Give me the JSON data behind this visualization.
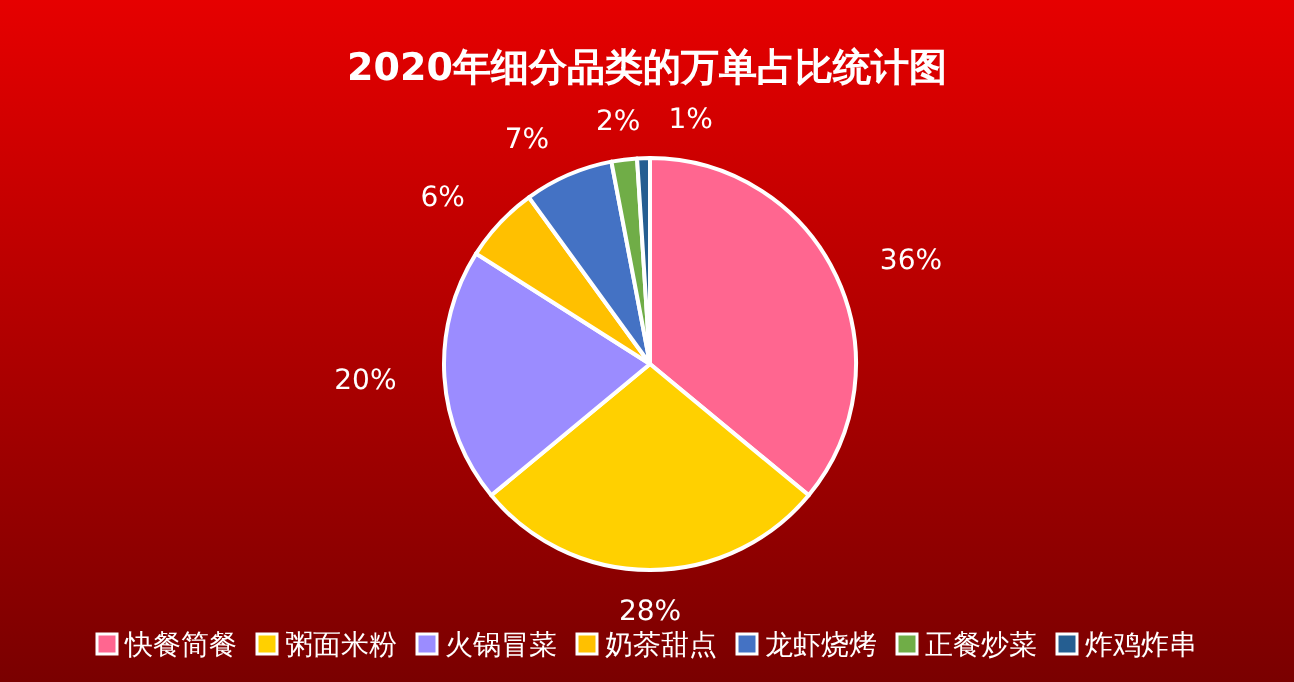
{
  "chart_data": {
    "type": "pie",
    "title": "2020年细分品类的万单占比统计图",
    "categories": [
      "快餐简餐",
      "粥面米粉",
      "火锅冒菜",
      "奶茶甜点",
      "龙虾烧烤",
      "正餐炒菜",
      "炸鸡炸串"
    ],
    "values": [
      36,
      28,
      20,
      6,
      7,
      2,
      1
    ],
    "value_labels": [
      "36%",
      "28%",
      "20%",
      "6%",
      "7%",
      "2%",
      "1%"
    ],
    "colors": [
      "#ff6690",
      "#ffd000",
      "#9b8cff",
      "#ffc000",
      "#4472c4",
      "#70ad47",
      "#255e91"
    ],
    "legend": "bottom"
  }
}
